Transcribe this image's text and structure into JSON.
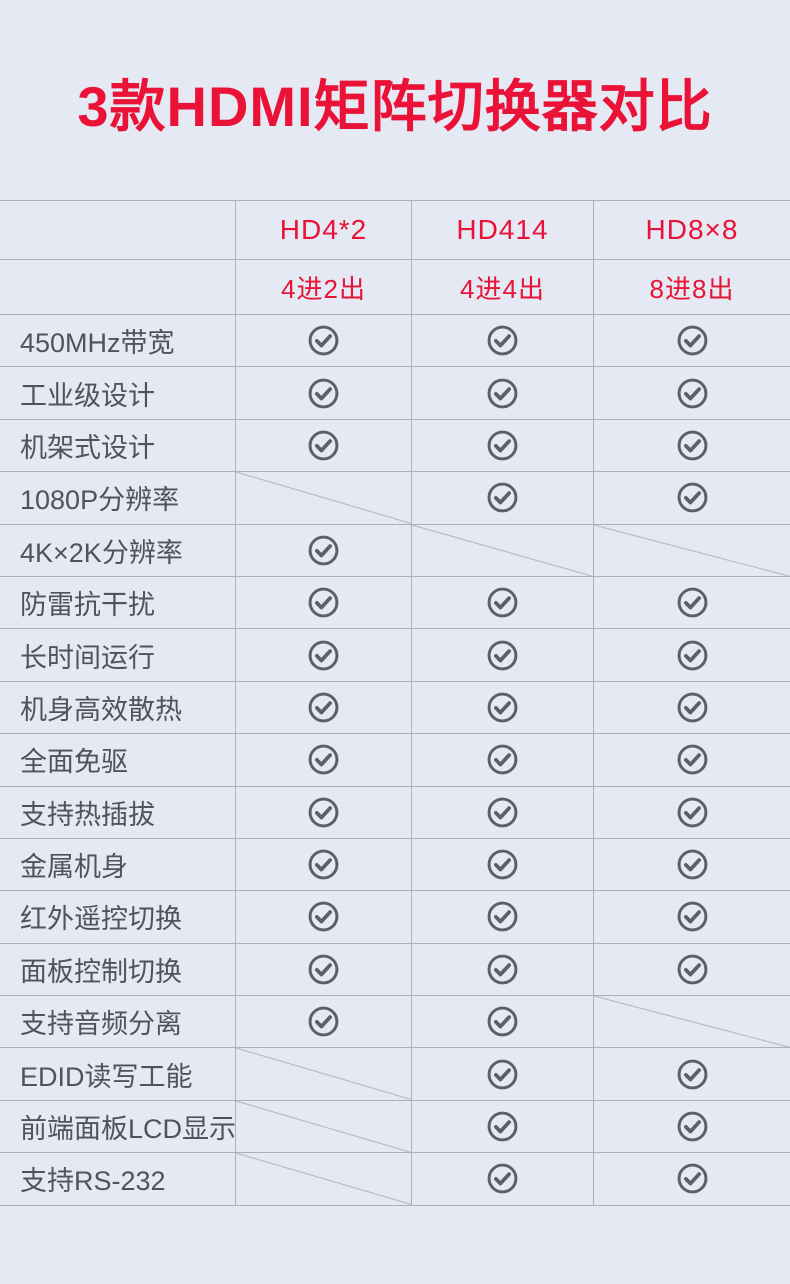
{
  "title": "3款HDMI矩阵切换器对比",
  "colors": {
    "background": "#e4e9f3",
    "accent_red": "#ea1236",
    "grid_line": "#a9b1bd",
    "diagonal_line": "#b6bdc8",
    "label_text": "#4f535b",
    "check_icon": "#5b6067"
  },
  "icons": {
    "supported": "circled-check-icon",
    "not_supported": "diagonal-strike-line"
  },
  "chart_data": {
    "type": "table",
    "title": "3款HDMI矩阵切换器对比",
    "columns": [
      "",
      "HD4*2",
      "HD414",
      "HD8×8"
    ],
    "products": [
      {
        "model": "HD4*2",
        "config": "4进2出"
      },
      {
        "model": "HD414",
        "config": "4进4出"
      },
      {
        "model": "HD8×8",
        "config": "8进8出"
      }
    ],
    "features": [
      {
        "label": "450MHz带宽",
        "support": [
          1,
          1,
          1
        ]
      },
      {
        "label": "工业级设计",
        "support": [
          1,
          1,
          1
        ]
      },
      {
        "label": "机架式设计",
        "support": [
          1,
          1,
          1
        ]
      },
      {
        "label": "1080P分辨率",
        "support": [
          0,
          1,
          1
        ]
      },
      {
        "label": "4K×2K分辨率",
        "support": [
          1,
          0,
          0
        ]
      },
      {
        "label": "防雷抗干扰",
        "support": [
          1,
          1,
          1
        ]
      },
      {
        "label": "长时间运行",
        "support": [
          1,
          1,
          1
        ]
      },
      {
        "label": "机身高效散热",
        "support": [
          1,
          1,
          1
        ]
      },
      {
        "label": "全面免驱",
        "support": [
          1,
          1,
          1
        ]
      },
      {
        "label": "支持热插拔",
        "support": [
          1,
          1,
          1
        ]
      },
      {
        "label": "金属机身",
        "support": [
          1,
          1,
          1
        ]
      },
      {
        "label": "红外遥控切换",
        "support": [
          1,
          1,
          1
        ]
      },
      {
        "label": "面板控制切换",
        "support": [
          1,
          1,
          1
        ]
      },
      {
        "label": "支持音频分离",
        "support": [
          1,
          1,
          0
        ]
      },
      {
        "label": "EDID读写工能",
        "support": [
          0,
          1,
          1
        ]
      },
      {
        "label": "前端面板LCD显示",
        "support": [
          0,
          1,
          1
        ]
      },
      {
        "label": "支持RS-232",
        "support": [
          0,
          1,
          1
        ]
      }
    ]
  }
}
